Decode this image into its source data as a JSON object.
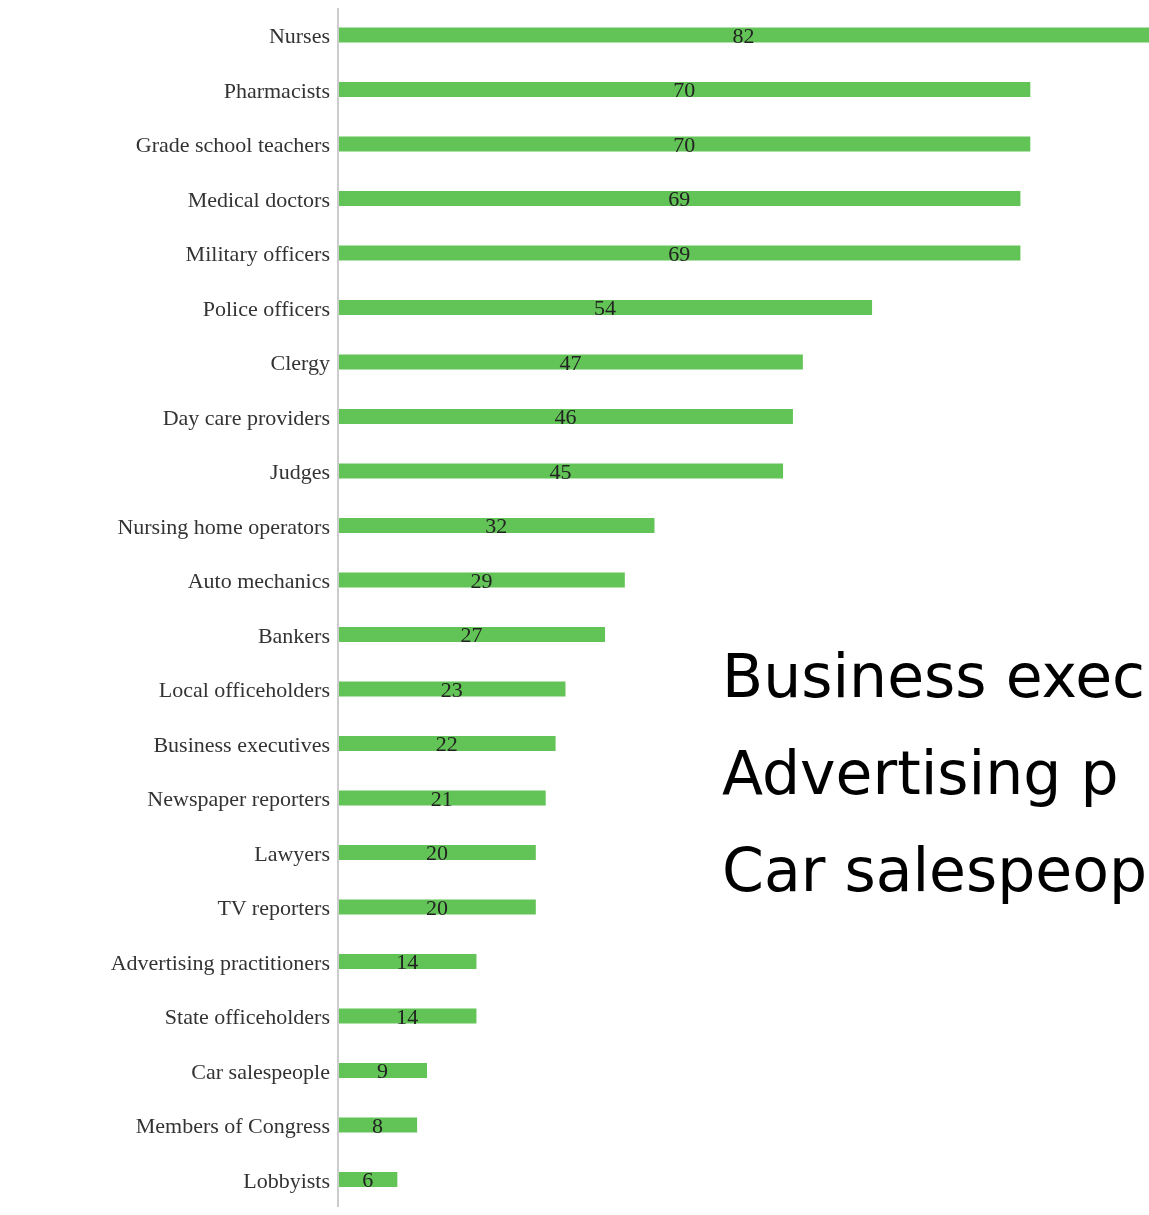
{
  "chart_data": {
    "type": "bar",
    "orientation": "horizontal",
    "categories": [
      "Nurses",
      "Pharmacists",
      "Grade school teachers",
      "Medical doctors",
      "Military officers",
      "Police officers",
      "Clergy",
      "Day care providers",
      "Judges",
      "Nursing home operators",
      "Auto mechanics",
      "Bankers",
      "Local officeholders",
      "Business executives",
      "Newspaper reporters",
      "Lawyers",
      "TV reporters",
      "Advertising practitioners",
      "State officeholders",
      "Car salespeople",
      "Members of Congress",
      "Lobbyists"
    ],
    "values": [
      82,
      70,
      70,
      69,
      69,
      54,
      47,
      46,
      45,
      32,
      29,
      27,
      23,
      22,
      21,
      20,
      20,
      14,
      14,
      9,
      8,
      6
    ],
    "color": "#62c456",
    "data_labels": true,
    "grid": false,
    "legend": false,
    "annotations": [
      "Business exec",
      "Advertising p",
      "Car salespeop"
    ]
  }
}
